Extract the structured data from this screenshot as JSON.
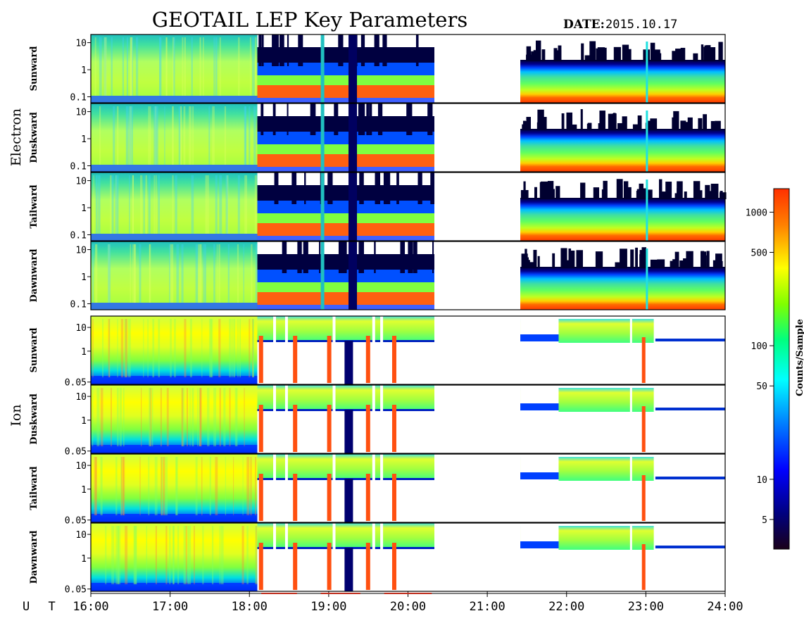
{
  "header": {
    "title": "GEOTAIL LEP Key Parameters",
    "date_label": "DATE:",
    "date_value": "2015.10.17"
  },
  "groups": [
    {
      "label": "Electron"
    },
    {
      "label": "Ion"
    }
  ],
  "colorbar": {
    "label": "Counts/Sample",
    "scale": "log",
    "range": [
      3,
      1500
    ],
    "ticks": [
      {
        "value": 1000,
        "label": "1000"
      },
      {
        "value": 500,
        "label": "500"
      },
      {
        "value": 100,
        "label": "100"
      },
      {
        "value": 50,
        "label": "50"
      },
      {
        "value": 10,
        "label": "10"
      },
      {
        "value": 5,
        "label": "5"
      }
    ],
    "colors": [
      "#1a001a",
      "#000080",
      "#0000ff",
      "#0080ff",
      "#00ffff",
      "#00ff80",
      "#80ff00",
      "#ffff00",
      "#ff8000",
      "#ff3000"
    ]
  },
  "time_axis": {
    "prefix": "U T",
    "range": [
      "16:00",
      "24:00"
    ],
    "ticks": [
      "16:00",
      "17:00",
      "18:00",
      "19:00",
      "20:00",
      "21:00",
      "22:00",
      "23:00",
      "24:00"
    ]
  },
  "chart_data": {
    "type": "heatmap",
    "title": "GEOTAIL LEP Key Parameters",
    "date": "2015.10.17",
    "x_axis": "U T",
    "x_range": [
      "16:00",
      "24:00"
    ],
    "data_gaps": [
      [
        "20:20",
        "21:25"
      ]
    ],
    "panels": [
      {
        "group": "Electron",
        "label": "Sunward",
        "y_scale": "log",
        "y_range": [
          0.06,
          20
        ],
        "y_ticks": [
          "10",
          "1",
          "0.1"
        ]
      },
      {
        "group": "Electron",
        "label": "Duskward",
        "y_scale": "log",
        "y_range": [
          0.06,
          20
        ],
        "y_ticks": [
          "10",
          "1",
          "0.1"
        ]
      },
      {
        "group": "Electron",
        "label": "Tailward",
        "y_scale": "log",
        "y_range": [
          0.06,
          20
        ],
        "y_ticks": [
          "10",
          "1",
          "0.1"
        ]
      },
      {
        "group": "Electron",
        "label": "Dawnward",
        "y_scale": "log",
        "y_range": [
          0.06,
          20
        ],
        "y_ticks": [
          "10",
          "1",
          "0.1"
        ]
      },
      {
        "group": "Ion",
        "label": "Sunward",
        "y_scale": "log",
        "y_range": [
          0.04,
          30
        ],
        "y_ticks": [
          "10",
          "1",
          "0.05"
        ]
      },
      {
        "group": "Ion",
        "label": "Duskward",
        "y_scale": "log",
        "y_range": [
          0.04,
          30
        ],
        "y_ticks": [
          "10",
          "1",
          "0.05"
        ]
      },
      {
        "group": "Ion",
        "label": "Tailward",
        "y_scale": "log",
        "y_range": [
          0.04,
          30
        ],
        "y_ticks": [
          "10",
          "1",
          "0.05"
        ]
      },
      {
        "group": "Ion",
        "label": "Dawnward",
        "y_scale": "log",
        "y_range": [
          0.04,
          30
        ],
        "y_ticks": [
          "10",
          "1",
          "0.05"
        ]
      }
    ],
    "colorbar_label": "Counts/Sample"
  }
}
